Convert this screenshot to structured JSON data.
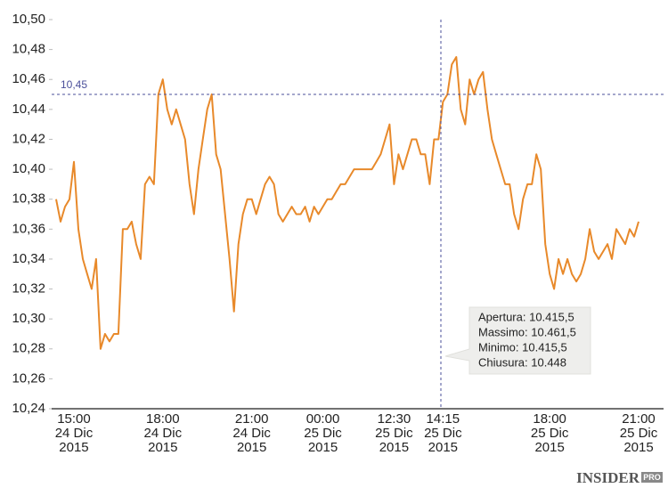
{
  "chart_data": {
    "type": "line",
    "categories": [
      null,
      null,
      null,
      null,
      "15:00\n24 Dic\n2015",
      null,
      null,
      null,
      null,
      null,
      null,
      null,
      null,
      null,
      null,
      null,
      null,
      null,
      null,
      null,
      null,
      null,
      null,
      null,
      "18:00\n24 Dic\n2015",
      null,
      null,
      null,
      null,
      null,
      null,
      null,
      null,
      null,
      null,
      null,
      null,
      null,
      null,
      null,
      null,
      null,
      null,
      null,
      "21:00\n24 Dic\n2015",
      null,
      null,
      null,
      null,
      null,
      null,
      null,
      null,
      null,
      null,
      null,
      null,
      null,
      null,
      null,
      "00:00\n25 Dic\n2015",
      null,
      null,
      null,
      null,
      null,
      null,
      null,
      null,
      null,
      null,
      null,
      null,
      null,
      null,
      null,
      "12:30\n25 Dic\n2015",
      null,
      null,
      null,
      null,
      null,
      null,
      null,
      null,
      null,
      null,
      "14:15\n25 Dic\n2015",
      null,
      null,
      null,
      null,
      null,
      null,
      null,
      null,
      null,
      null,
      null,
      null,
      null,
      null,
      null,
      null,
      null,
      null,
      null,
      null,
      null,
      null,
      null,
      "18:00\n25 Dic\n2015",
      null,
      null,
      null,
      null,
      null,
      null,
      null,
      null,
      null,
      null,
      null,
      null,
      null,
      null,
      null,
      null,
      null,
      null,
      null,
      "21:00\n25 Dic\n2015"
    ],
    "series": [
      {
        "color": "#e8892a",
        "values": [
          10.38,
          10.365,
          10.375,
          10.38,
          10.405,
          10.36,
          10.34,
          10.33,
          10.32,
          10.34,
          10.28,
          10.29,
          10.285,
          10.29,
          10.29,
          10.36,
          10.36,
          10.365,
          10.35,
          10.34,
          10.39,
          10.395,
          10.39,
          10.45,
          10.46,
          10.44,
          10.43,
          10.44,
          10.43,
          10.42,
          10.39,
          10.37,
          10.4,
          10.42,
          10.44,
          10.45,
          10.41,
          10.4,
          10.37,
          10.34,
          10.305,
          10.35,
          10.37,
          10.38,
          10.38,
          10.37,
          10.38,
          10.39,
          10.395,
          10.39,
          10.37,
          10.365,
          10.37,
          10.375,
          10.37,
          10.37,
          10.375,
          10.365,
          10.375,
          10.37,
          10.375,
          10.38,
          10.38,
          10.385,
          10.39,
          10.39,
          10.395,
          10.4,
          10.4,
          10.4,
          10.4,
          10.4,
          10.405,
          10.41,
          10.42,
          10.43,
          10.39,
          10.41,
          10.4,
          10.41,
          10.42,
          10.42,
          10.41,
          10.41,
          10.39,
          10.42,
          10.42,
          10.445,
          10.45,
          10.47,
          10.475,
          10.44,
          10.43,
          10.46,
          10.45,
          10.46,
          10.465,
          10.44,
          10.42,
          10.41,
          10.4,
          10.39,
          10.39,
          10.37,
          10.36,
          10.38,
          10.39,
          10.39,
          10.41,
          10.4,
          10.35,
          10.33,
          10.32,
          10.34,
          10.33,
          10.34,
          10.33,
          10.325,
          10.33,
          10.34,
          10.36,
          10.345,
          10.34,
          10.345,
          10.35,
          10.34,
          10.36,
          10.355,
          10.35,
          10.36,
          10.355,
          10.365
        ]
      }
    ],
    "ylim": [
      10.24,
      10.5
    ],
    "yticks": [
      {
        "value": 10.24,
        "label": "10,24"
      },
      {
        "value": 10.26,
        "label": "10,26"
      },
      {
        "value": 10.28,
        "label": "10,28"
      },
      {
        "value": 10.3,
        "label": "10,30"
      },
      {
        "value": 10.32,
        "label": "10,32"
      },
      {
        "value": 10.34,
        "label": "10,34"
      },
      {
        "value": 10.36,
        "label": "10,36"
      },
      {
        "value": 10.38,
        "label": "10,38"
      },
      {
        "value": 10.4,
        "label": "10,40"
      },
      {
        "value": 10.42,
        "label": "10,42"
      },
      {
        "value": 10.44,
        "label": "10,44"
      },
      {
        "value": 10.46,
        "label": "10,46"
      },
      {
        "value": 10.48,
        "label": "10,48"
      },
      {
        "value": 10.5,
        "label": "10,50"
      }
    ],
    "grid": false,
    "reference_line": {
      "value": 10.45,
      "label": "10,45",
      "color": "#4a4f9a"
    },
    "tooltip": [
      "Apertura: 10.415,5",
      "Massimo: 10.461,5",
      "Minimo:  10.415,5",
      "Chiusura: 10.448"
    ],
    "logo": {
      "text": "INSIDER",
      "badge": "PRO"
    }
  }
}
